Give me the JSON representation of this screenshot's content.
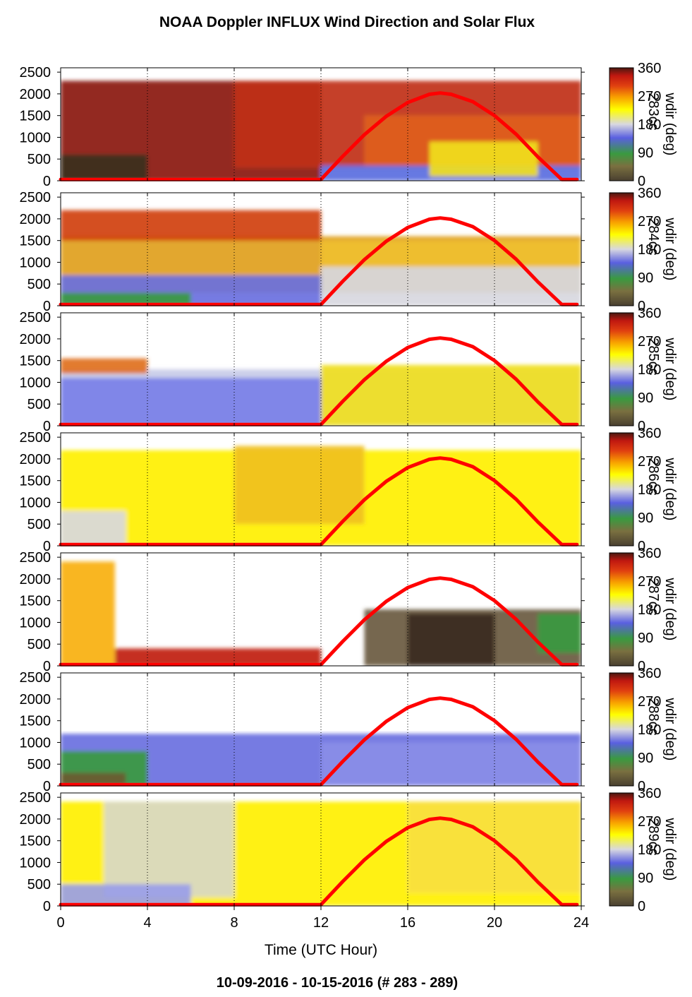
{
  "title": "NOAA Doppler INFLUX Wind Direction and Solar Flux",
  "footer": "10-09-2016 - 10-15-2016   (# 283 - 289)",
  "colors": {
    "solar_curve": "#ff0000",
    "colormap": [
      "#4a4030",
      "#7a7040",
      "#3a9a40",
      "#5a60e0",
      "#d8d8e0",
      "#ffff00",
      "#f8a000",
      "#e04010",
      "#c01810",
      "#4a1810"
    ]
  },
  "chart_data": {
    "type": "heatmap",
    "xlabel": "Time (UTC Hour)",
    "x_ticks": [
      "0",
      "4",
      "8",
      "12",
      "16",
      "20",
      "24"
    ],
    "xlim": [
      0,
      24
    ],
    "y_ticks": [
      "0",
      "500",
      "1000",
      "1500",
      "2000",
      "2500"
    ],
    "ylim": [
      0,
      2600
    ],
    "grid": "dotted vertical lines at 4, 8, 12, 16, 20, 24",
    "colorbar": {
      "label": "wdir (deg)",
      "ticks": [
        "0",
        "90",
        "180",
        "270",
        "360"
      ],
      "range": [
        0,
        360
      ]
    },
    "solar_flux_curve": {
      "description": "red curve, zero before sunrise and after sunset",
      "x": [
        0,
        12.0,
        13,
        14,
        15,
        16,
        17,
        17.5,
        18,
        19,
        20,
        21,
        22,
        23.1,
        23.8
      ],
      "y": [
        30,
        30,
        560,
        1060,
        1480,
        1800,
        1990,
        2020,
        1990,
        1820,
        1500,
        1070,
        550,
        30,
        30
      ]
    },
    "panels": [
      {
        "day": "283",
        "overlay_label": "283cc",
        "dominant_direction": "west-northwest (270-330 deg) aloft, south near surface after 12 UTC",
        "top_height_m": 2300
      },
      {
        "day": "284",
        "overlay_label": "284cc",
        "dominant_direction": "southwest (220-280 deg) aloft, southeast near surface",
        "top_height_m": 2200
      },
      {
        "day": "285",
        "overlay_label": "285cc",
        "dominant_direction": "south to south-southwest (160-220 deg)",
        "top_height_m": 1550
      },
      {
        "day": "286",
        "overlay_label": "286cc",
        "dominant_direction": "south-southwest (200-230 deg)",
        "top_height_m": 2200
      },
      {
        "day": "287",
        "overlay_label": "287cc",
        "dominant_direction": "southwest early, northwest to north-northwest later, mixed 0-360 after 14 UTC",
        "top_height_m": 1300
      },
      {
        "day": "288",
        "overlay_label": "288cc",
        "dominant_direction": "east to southeast (90-150 deg)",
        "top_height_m": 1200
      },
      {
        "day": "289",
        "overlay_label": "289cc",
        "dominant_direction": "south to south-southwest (180-220 deg)",
        "top_height_m": 2400
      }
    ]
  }
}
